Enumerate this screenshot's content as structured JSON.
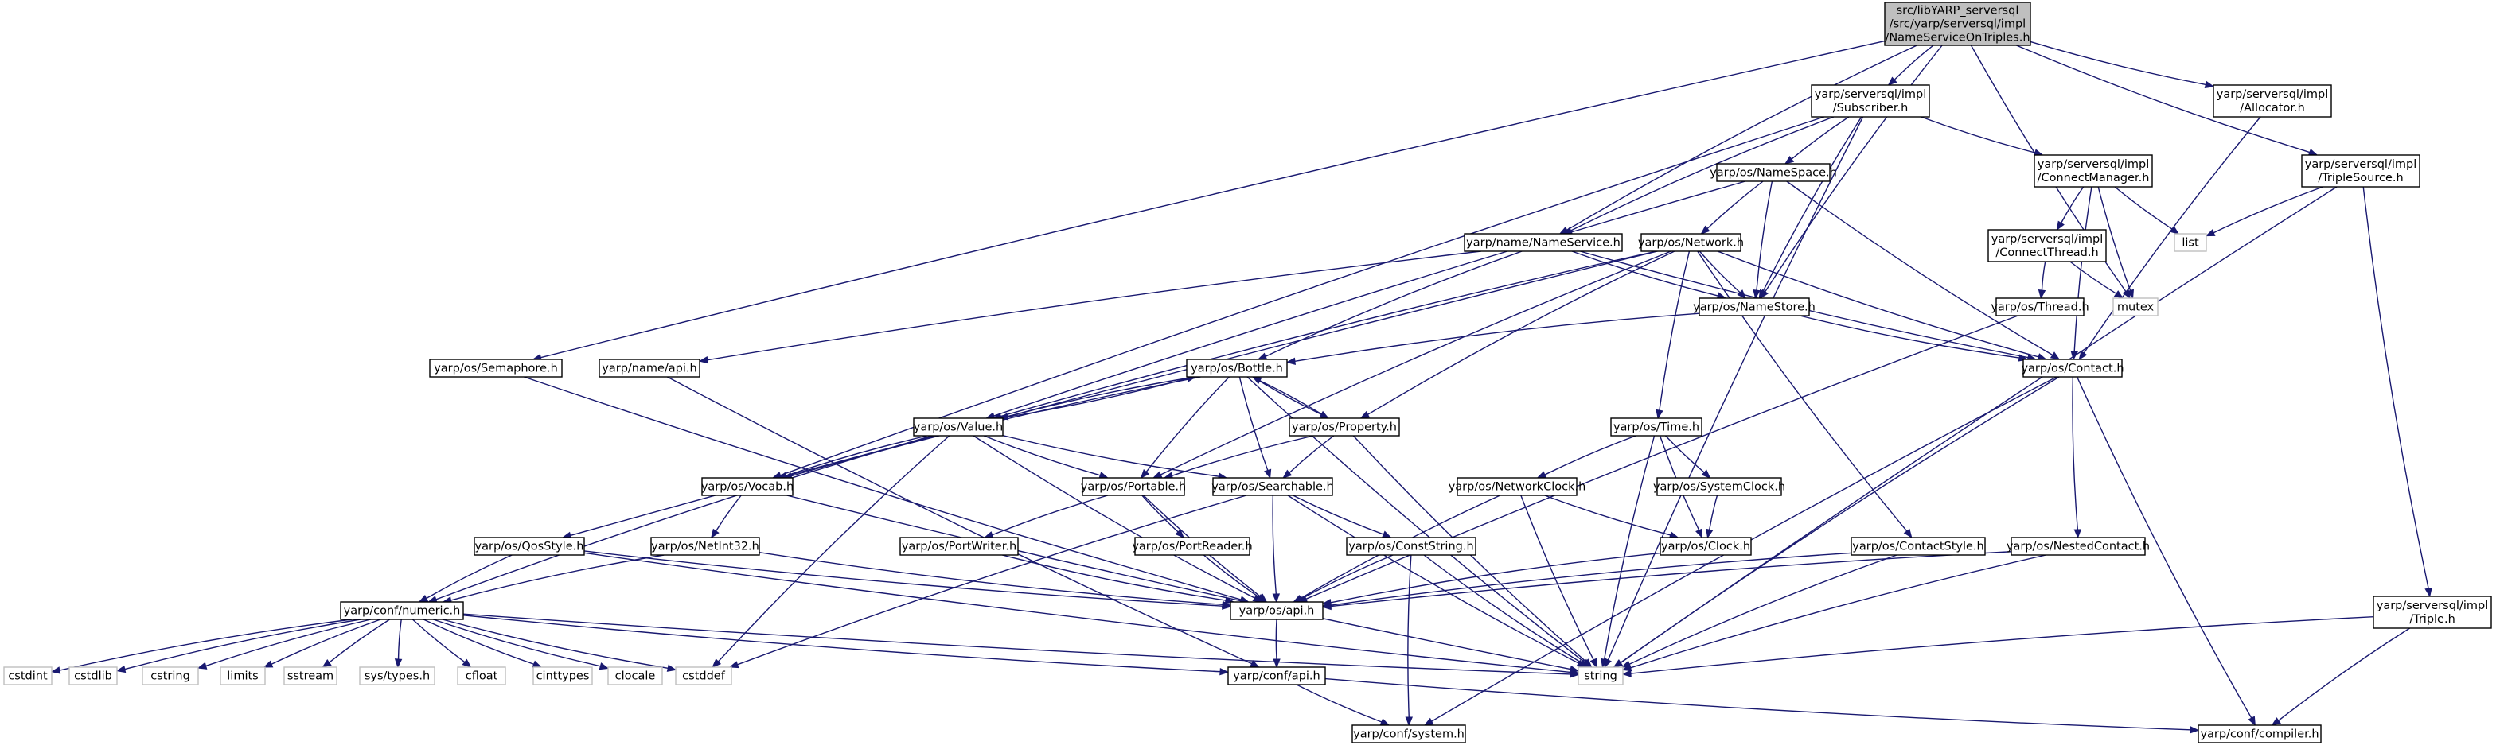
{
  "nodes": [
    {
      "id": "root",
      "kind": "root",
      "lines": [
        "src/libYARP_serversql",
        "/src/yarp/serversql/impl",
        "/NameServiceOnTriples.h"
      ]
    },
    {
      "id": "subscriber",
      "lines": [
        "yarp/serversql/impl",
        "/Subscriber.h"
      ]
    },
    {
      "id": "allocator",
      "lines": [
        "yarp/serversql/impl",
        "/Allocator.h"
      ]
    },
    {
      "id": "triplesource",
      "lines": [
        "yarp/serversql/impl",
        "/TripleSource.h"
      ]
    },
    {
      "id": "namespace",
      "lines": [
        "yarp/os/NameSpace.h"
      ]
    },
    {
      "id": "connectmanager",
      "lines": [
        "yarp/serversql/impl",
        "/ConnectManager.h"
      ]
    },
    {
      "id": "list",
      "kind": "ext",
      "lines": [
        "list"
      ]
    },
    {
      "id": "nameservice",
      "lines": [
        "yarp/name/NameService.h"
      ]
    },
    {
      "id": "network",
      "lines": [
        "yarp/os/Network.h"
      ]
    },
    {
      "id": "connectthread",
      "lines": [
        "yarp/serversql/impl",
        "/ConnectThread.h"
      ]
    },
    {
      "id": "namestore",
      "lines": [
        "yarp/os/NameStore.h"
      ]
    },
    {
      "id": "thread",
      "lines": [
        "yarp/os/Thread.h"
      ]
    },
    {
      "id": "mutex",
      "kind": "ext",
      "lines": [
        "mutex"
      ]
    },
    {
      "id": "semaphore",
      "lines": [
        "yarp/os/Semaphore.h"
      ]
    },
    {
      "id": "nameapi",
      "lines": [
        "yarp/name/api.h"
      ]
    },
    {
      "id": "bottle",
      "lines": [
        "yarp/os/Bottle.h"
      ]
    },
    {
      "id": "contact",
      "lines": [
        "yarp/os/Contact.h"
      ]
    },
    {
      "id": "value",
      "lines": [
        "yarp/os/Value.h"
      ]
    },
    {
      "id": "property",
      "lines": [
        "yarp/os/Property.h"
      ]
    },
    {
      "id": "time",
      "lines": [
        "yarp/os/Time.h"
      ]
    },
    {
      "id": "vocab",
      "lines": [
        "yarp/os/Vocab.h"
      ]
    },
    {
      "id": "portable",
      "lines": [
        "yarp/os/Portable.h"
      ]
    },
    {
      "id": "searchable",
      "lines": [
        "yarp/os/Searchable.h"
      ]
    },
    {
      "id": "networkclock",
      "lines": [
        "yarp/os/NetworkClock.h"
      ]
    },
    {
      "id": "systemclock",
      "lines": [
        "yarp/os/SystemClock.h"
      ]
    },
    {
      "id": "qosstyle",
      "lines": [
        "yarp/os/QosStyle.h"
      ]
    },
    {
      "id": "netint32",
      "lines": [
        "yarp/os/NetInt32.h"
      ]
    },
    {
      "id": "portwriter",
      "lines": [
        "yarp/os/PortWriter.h"
      ]
    },
    {
      "id": "portreader",
      "lines": [
        "yarp/os/PortReader.h"
      ]
    },
    {
      "id": "conststring",
      "lines": [
        "yarp/os/ConstString.h"
      ]
    },
    {
      "id": "clock",
      "lines": [
        "yarp/os/Clock.h"
      ]
    },
    {
      "id": "contactstyle",
      "lines": [
        "yarp/os/ContactStyle.h"
      ]
    },
    {
      "id": "nestedcontact",
      "lines": [
        "yarp/os/NestedContact.h"
      ]
    },
    {
      "id": "numeric",
      "lines": [
        "yarp/conf/numeric.h"
      ]
    },
    {
      "id": "osapi",
      "lines": [
        "yarp/os/api.h"
      ]
    },
    {
      "id": "triple",
      "lines": [
        "yarp/serversql/impl",
        "/Triple.h"
      ]
    },
    {
      "id": "cstdint",
      "kind": "ext",
      "lines": [
        "cstdint"
      ]
    },
    {
      "id": "cstdlib",
      "kind": "ext",
      "lines": [
        "cstdlib"
      ]
    },
    {
      "id": "cstring",
      "kind": "ext",
      "lines": [
        "cstring"
      ]
    },
    {
      "id": "limits",
      "kind": "ext",
      "lines": [
        "limits"
      ]
    },
    {
      "id": "sstream",
      "kind": "ext",
      "lines": [
        "sstream"
      ]
    },
    {
      "id": "systypes",
      "kind": "ext",
      "lines": [
        "sys/types.h"
      ]
    },
    {
      "id": "cfloat",
      "kind": "ext",
      "lines": [
        "cfloat"
      ]
    },
    {
      "id": "cinttypes",
      "kind": "ext",
      "lines": [
        "cinttypes"
      ]
    },
    {
      "id": "clocale",
      "kind": "ext",
      "lines": [
        "clocale"
      ]
    },
    {
      "id": "cstddef",
      "kind": "ext",
      "lines": [
        "cstddef"
      ]
    },
    {
      "id": "string",
      "kind": "ext",
      "lines": [
        "string"
      ]
    },
    {
      "id": "confapi",
      "lines": [
        "yarp/conf/api.h"
      ]
    },
    {
      "id": "confsystem",
      "lines": [
        "yarp/conf/system.h"
      ]
    },
    {
      "id": "confcompiler",
      "lines": [
        "yarp/conf/compiler.h"
      ]
    }
  ],
  "edges": [
    [
      "root",
      "subscriber"
    ],
    [
      "root",
      "allocator"
    ],
    [
      "root",
      "triplesource"
    ],
    [
      "root",
      "semaphore"
    ],
    [
      "root",
      "nameservice"
    ],
    [
      "root",
      "namestore"
    ],
    [
      "root",
      "mutex"
    ],
    [
      "subscriber",
      "namespace"
    ],
    [
      "subscriber",
      "connectmanager"
    ],
    [
      "subscriber",
      "nameservice"
    ],
    [
      "subscriber",
      "namestore"
    ],
    [
      "subscriber",
      "vocab"
    ],
    [
      "subscriber",
      "string"
    ],
    [
      "allocator",
      "contact"
    ],
    [
      "triplesource",
      "list"
    ],
    [
      "triplesource",
      "triple"
    ],
    [
      "triplesource",
      "string"
    ],
    [
      "namespace",
      "network"
    ],
    [
      "namespace",
      "namestore"
    ],
    [
      "namespace",
      "contact"
    ],
    [
      "namespace",
      "value"
    ],
    [
      "connectmanager",
      "connectthread"
    ],
    [
      "connectmanager",
      "list"
    ],
    [
      "connectmanager",
      "mutex"
    ],
    [
      "connectmanager",
      "contact"
    ],
    [
      "nameservice",
      "bottle"
    ],
    [
      "nameservice",
      "contact"
    ],
    [
      "nameservice",
      "nameapi"
    ],
    [
      "nameservice",
      "namestore"
    ],
    [
      "network",
      "namestore"
    ],
    [
      "network",
      "contact"
    ],
    [
      "network",
      "property"
    ],
    [
      "network",
      "portable"
    ],
    [
      "network",
      "time"
    ],
    [
      "network",
      "contactstyle"
    ],
    [
      "network",
      "qosstyle"
    ],
    [
      "network",
      "value"
    ],
    [
      "connectthread",
      "thread"
    ],
    [
      "connectthread",
      "mutex"
    ],
    [
      "namestore",
      "contact"
    ],
    [
      "namestore",
      "bottle"
    ],
    [
      "thread",
      "osapi"
    ],
    [
      "semaphore",
      "osapi"
    ],
    [
      "nameapi",
      "confapi"
    ],
    [
      "bottle",
      "value"
    ],
    [
      "bottle",
      "property"
    ],
    [
      "bottle",
      "portable"
    ],
    [
      "bottle",
      "searchable"
    ],
    [
      "bottle",
      "vocab"
    ],
    [
      "bottle",
      "string"
    ],
    [
      "contact",
      "nestedcontact"
    ],
    [
      "contact",
      "string"
    ],
    [
      "contact",
      "confsystem"
    ],
    [
      "contact",
      "confcompiler"
    ],
    [
      "value",
      "bottle"
    ],
    [
      "value",
      "vocab"
    ],
    [
      "value",
      "portable"
    ],
    [
      "value",
      "searchable"
    ],
    [
      "value",
      "numeric"
    ],
    [
      "value",
      "cstddef"
    ],
    [
      "value",
      "osapi"
    ],
    [
      "property",
      "bottle"
    ],
    [
      "property",
      "portable"
    ],
    [
      "property",
      "searchable"
    ],
    [
      "property",
      "string"
    ],
    [
      "time",
      "networkclock"
    ],
    [
      "time",
      "systemclock"
    ],
    [
      "time",
      "clock"
    ],
    [
      "time",
      "string"
    ],
    [
      "vocab",
      "netint32"
    ],
    [
      "vocab",
      "string"
    ],
    [
      "portable",
      "portwriter"
    ],
    [
      "portable",
      "portreader"
    ],
    [
      "portable",
      "osapi"
    ],
    [
      "searchable",
      "conststring"
    ],
    [
      "searchable",
      "osapi"
    ],
    [
      "searchable",
      "string"
    ],
    [
      "searchable",
      "cstddef"
    ],
    [
      "networkclock",
      "clock"
    ],
    [
      "networkclock",
      "string"
    ],
    [
      "networkclock",
      "osapi"
    ],
    [
      "systemclock",
      "clock"
    ],
    [
      "qosstyle",
      "numeric"
    ],
    [
      "qosstyle",
      "osapi"
    ],
    [
      "qosstyle",
      "string"
    ],
    [
      "netint32",
      "numeric"
    ],
    [
      "netint32",
      "osapi"
    ],
    [
      "portwriter",
      "osapi"
    ],
    [
      "portreader",
      "osapi"
    ],
    [
      "conststring",
      "osapi"
    ],
    [
      "conststring",
      "string"
    ],
    [
      "conststring",
      "confsystem"
    ],
    [
      "clock",
      "osapi"
    ],
    [
      "contactstyle",
      "osapi"
    ],
    [
      "contactstyle",
      "string"
    ],
    [
      "nestedcontact",
      "osapi"
    ],
    [
      "nestedcontact",
      "string"
    ],
    [
      "numeric",
      "cstdint"
    ],
    [
      "numeric",
      "cstdlib"
    ],
    [
      "numeric",
      "cstring"
    ],
    [
      "numeric",
      "limits"
    ],
    [
      "numeric",
      "sstream"
    ],
    [
      "numeric",
      "systypes"
    ],
    [
      "numeric",
      "cfloat"
    ],
    [
      "numeric",
      "cinttypes"
    ],
    [
      "numeric",
      "clocale"
    ],
    [
      "numeric",
      "cstddef"
    ],
    [
      "numeric",
      "string"
    ],
    [
      "numeric",
      "confapi"
    ],
    [
      "osapi",
      "confapi"
    ],
    [
      "confapi",
      "confsystem"
    ],
    [
      "confapi",
      "confcompiler"
    ],
    [
      "triple",
      "string"
    ],
    [
      "triple",
      "confcompiler"
    ]
  ]
}
